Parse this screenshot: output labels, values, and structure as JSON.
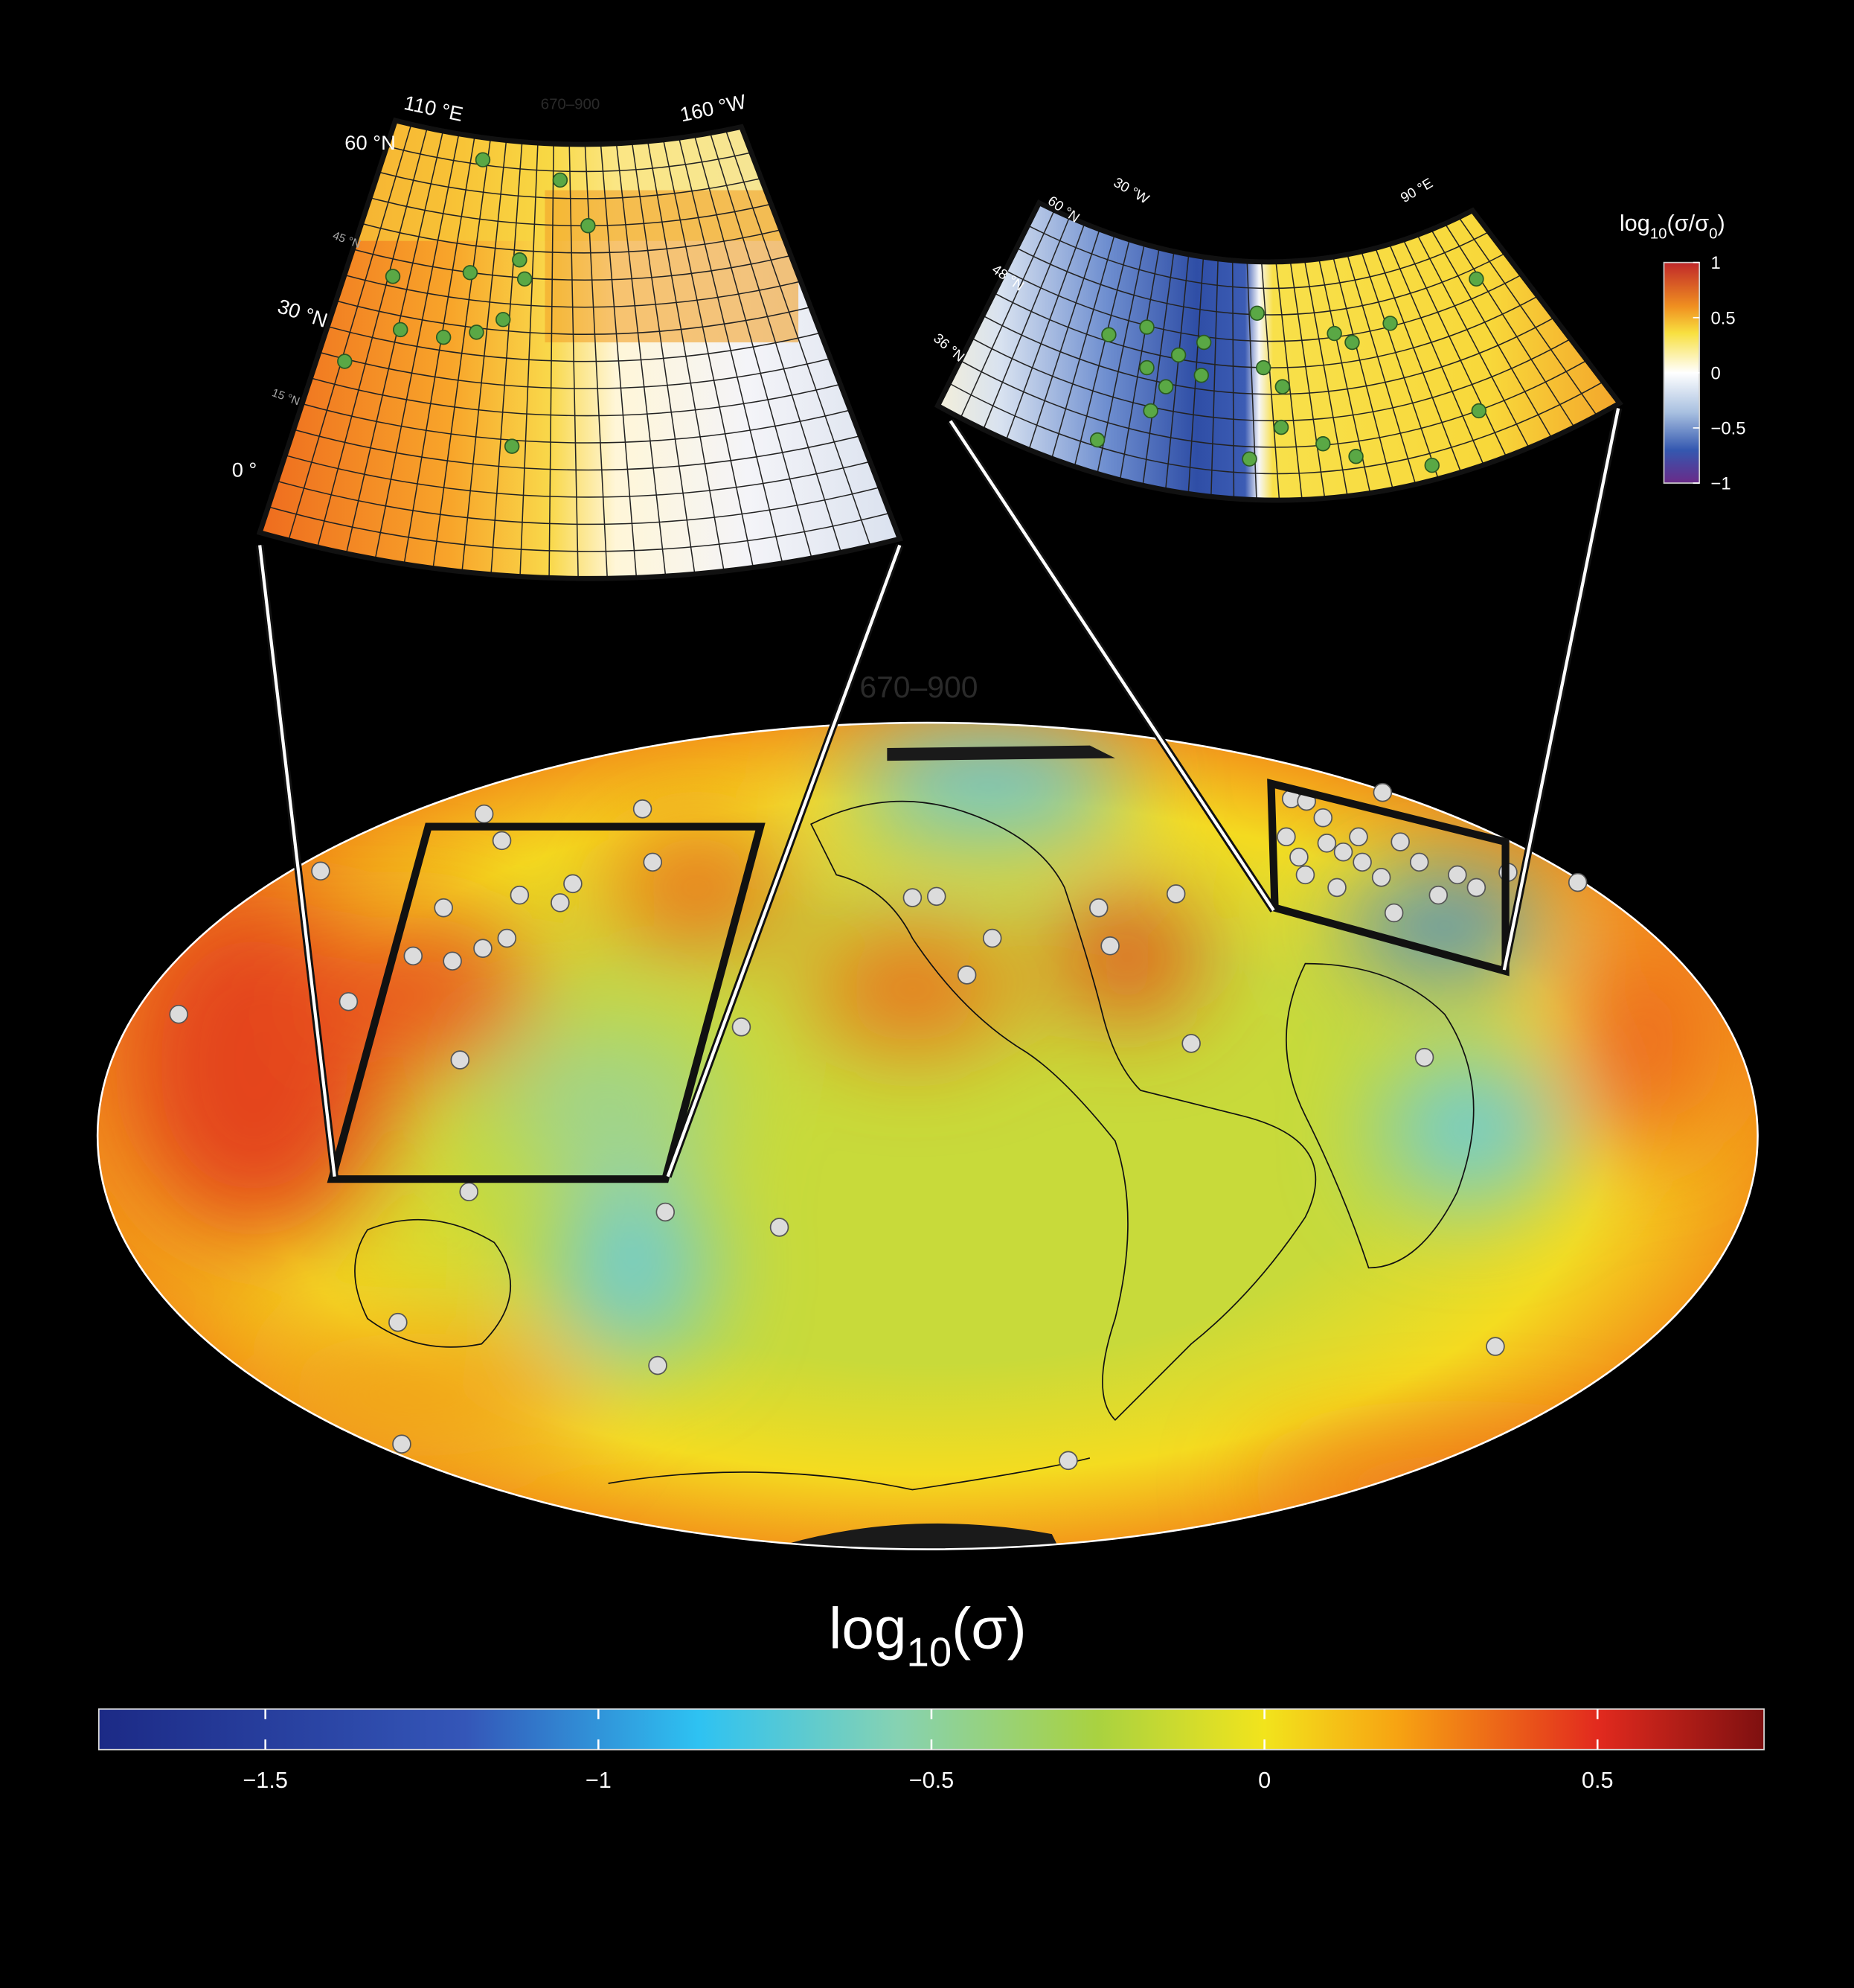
{
  "main_map": {
    "label": "670–900",
    "colorbar": {
      "title": {
        "base": "log",
        "sub": "10",
        "rest": "(σ)"
      },
      "lim": [
        -1.75,
        0.75
      ],
      "ticks": [
        {
          "value": -1.5,
          "label": "−1.5"
        },
        {
          "value": -1,
          "label": "−1"
        },
        {
          "value": -0.5,
          "label": "−0.5"
        },
        0,
        0.5
      ]
    }
  },
  "inset_left": {
    "label": "670–900",
    "lon_labels": [
      "110 °E",
      "160 °W"
    ],
    "lat_labels": [
      "60 °N",
      "45 °N",
      "30 °N",
      "15 °N",
      "0 °"
    ]
  },
  "inset_right": {
    "lon_labels": [
      "30 °W",
      "90 °E"
    ],
    "lat_labels": [
      "60 °N",
      "48 °N",
      "36 °N"
    ],
    "colorbar": {
      "title": {
        "base": "log",
        "sub": "10",
        "rest": "(σ/σ",
        "sub2": "0",
        "close": ")"
      },
      "lim": [
        -1,
        1
      ],
      "ticks": [
        1,
        0.5,
        0,
        {
          "value": -0.5,
          "label": "−0.5"
        },
        {
          "value": -1,
          "label": "−1"
        }
      ]
    }
  }
}
